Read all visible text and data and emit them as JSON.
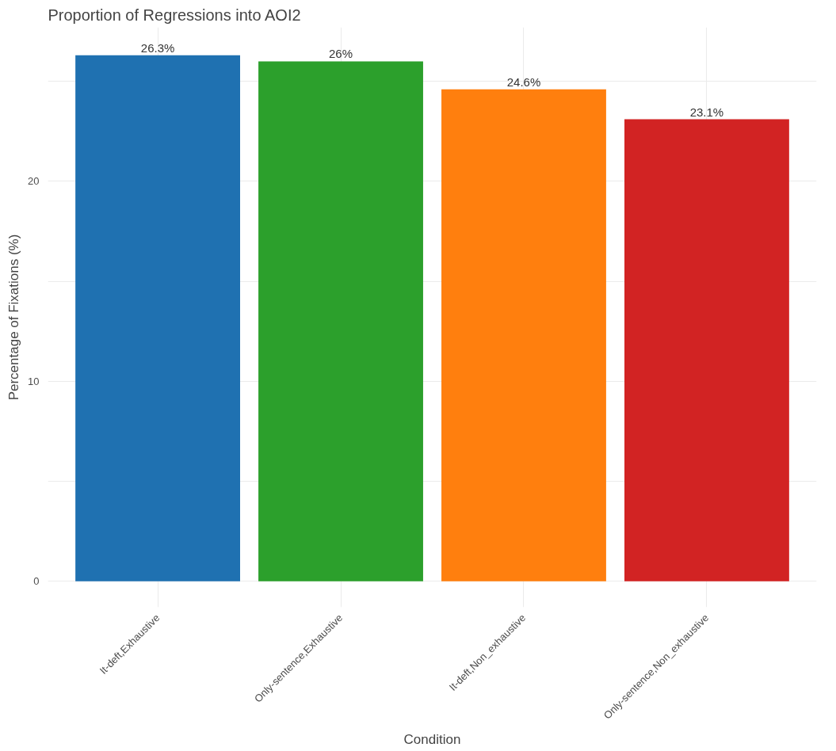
{
  "chart_data": {
    "type": "bar",
    "title": "Proportion of Regressions into AOI2",
    "xlabel": "Condition",
    "ylabel": "Percentage of Fixations (%)",
    "categories": [
      "It-deft,Exhaustive",
      "Only-sentence,Exhaustive",
      "It-deft,Non_exhaustive",
      "Only-sentence,Non_exhaustive"
    ],
    "values": [
      26.3,
      26.0,
      24.6,
      23.1
    ],
    "value_labels": [
      "26.3%",
      "26%",
      "24.6%",
      "23.1%"
    ],
    "colors": [
      "#1f71b1",
      "#2ca02c",
      "#ff7f0e",
      "#d22323"
    ],
    "ylim": [
      -1.3,
      27.7
    ],
    "yticks": [
      0,
      {
        "value": 5,
        "label": null
      },
      10,
      {
        "value": 15,
        "label": null
      },
      20,
      {
        "value": 25,
        "label": null
      }
    ],
    "grid": true
  }
}
